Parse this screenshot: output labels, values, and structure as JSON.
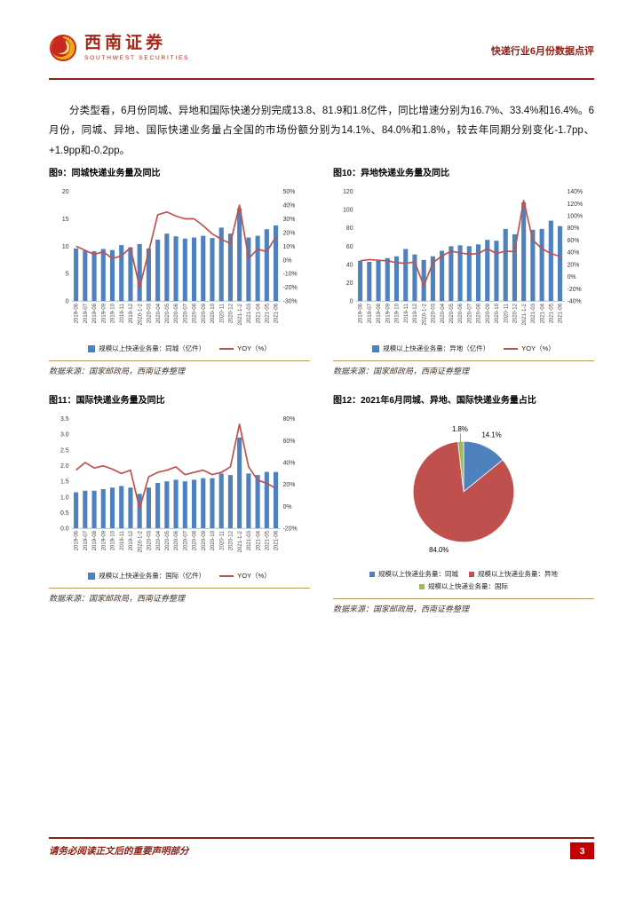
{
  "header": {
    "logo_cn": "西南证券",
    "logo_en": "SOUTHWEST SECURITIES",
    "report_title": "快递行业6月份数据点评"
  },
  "paragraph": "分类型看，6月份同城、异地和国际快递分别完成13.8、81.9和1.8亿件，同比增速分别为16.7%、33.4%和16.4%。6月份，同城、异地、国际快递业务量占全国的市场份额分别为14.1%、84.0%和1.8%，较去年同期分别变化-1.7pp、+1.9pp和-0.2pp。",
  "source_note": "数据来源：国家邮政局，西南证券整理",
  "footer": {
    "disclaimer": "请务必阅读正文后的重要声明部分",
    "page_number": "3"
  },
  "chart_data": [
    {
      "type": "bar",
      "title": "图9：同城快递业务量及同比",
      "categories": [
        "2019-06",
        "2019-07",
        "2019-08",
        "2019-09",
        "2019-10",
        "2019-11",
        "2019-12",
        "2020-1-2",
        "2020-03",
        "2020-04",
        "2020-05",
        "2020-06",
        "2020-07",
        "2020-08",
        "2020-09",
        "2020-10",
        "2020-11",
        "2020-12",
        "2021-1-2",
        "2021-03",
        "2021-04",
        "2021-05",
        "2021-06"
      ],
      "series": [
        {
          "name": "规模以上快递业务量：同城（亿件）",
          "type": "bar",
          "axis": "left",
          "values": [
            9.6,
            9.2,
            9.1,
            9.5,
            9.3,
            10.2,
            9.8,
            10.4,
            9.6,
            11.2,
            12.3,
            11.8,
            11.4,
            11.6,
            11.9,
            11.5,
            13.4,
            12.3,
            16.9,
            11.6,
            11.9,
            13.1,
            13.8
          ]
        },
        {
          "name": "YOY（%）",
          "type": "line",
          "axis": "right",
          "values": [
            10,
            7,
            4,
            6,
            1,
            3,
            9,
            -20,
            6,
            33,
            35,
            32,
            30,
            30,
            25,
            19,
            15,
            12,
            40,
            1,
            8,
            6,
            16.7
          ]
        }
      ],
      "axes": {
        "left": {
          "min": 0,
          "max": 20,
          "step": 5,
          "decimals": 0
        },
        "right": {
          "min": -30,
          "max": 50,
          "step": 10,
          "suffix": "%"
        }
      },
      "colors": {
        "bar": "#4F81BD",
        "line": "#C0504D"
      },
      "legend_position": "bottom",
      "grid": false
    },
    {
      "type": "bar",
      "title": "图10：异地快递业务量及同比",
      "categories": [
        "2019-06",
        "2019-07",
        "2019-08",
        "2019-09",
        "2019-10",
        "2019-11",
        "2019-12",
        "2020-1-2",
        "2020-03",
        "2020-04",
        "2020-05",
        "2020-06",
        "2020-07",
        "2020-08",
        "2020-09",
        "2020-10",
        "2020-11",
        "2020-12",
        "2021-1-2",
        "2021-03",
        "2021-04",
        "2021-05",
        "2021-06"
      ],
      "series": [
        {
          "name": "规模以上快递业务量：异地（亿件）",
          "type": "bar",
          "axis": "left",
          "values": [
            44,
            43,
            44,
            47,
            49,
            57,
            51,
            45,
            49,
            55,
            60,
            61,
            60,
            62,
            67,
            66,
            79,
            73,
            108,
            78,
            79,
            88,
            82
          ]
        },
        {
          "name": "YOY（%）",
          "type": "line",
          "axis": "right",
          "values": [
            26,
            28,
            27,
            26,
            23,
            22,
            24,
            -15,
            23,
            34,
            42,
            39,
            37,
            38,
            46,
            38,
            42,
            41,
            125,
            60,
            46,
            38,
            33.4
          ]
        }
      ],
      "axes": {
        "left": {
          "min": 0,
          "max": 120,
          "step": 20,
          "decimals": 0
        },
        "right": {
          "min": -40,
          "max": 140,
          "step": 20,
          "suffix": "%"
        }
      },
      "colors": {
        "bar": "#4F81BD",
        "line": "#C0504D"
      },
      "legend_position": "bottom",
      "grid": false
    },
    {
      "type": "bar",
      "title": "图11：国际快递业务量及同比",
      "categories": [
        "2019-06",
        "2019-07",
        "2019-08",
        "2019-09",
        "2019-10",
        "2019-11",
        "2019-12",
        "2020-1-2",
        "2020-03",
        "2020-04",
        "2020-05",
        "2020-06",
        "2020-07",
        "2020-08",
        "2020-09",
        "2020-10",
        "2020-11",
        "2020-12",
        "2021-1-2",
        "2021-03",
        "2021-04",
        "2021-05",
        "2021-06"
      ],
      "series": [
        {
          "name": "规模以上快递业务量：国际（亿件）",
          "type": "bar",
          "axis": "left",
          "values": [
            1.15,
            1.2,
            1.2,
            1.25,
            1.3,
            1.35,
            1.3,
            1.1,
            1.3,
            1.45,
            1.5,
            1.55,
            1.5,
            1.55,
            1.6,
            1.6,
            1.75,
            1.7,
            2.9,
            1.75,
            1.7,
            1.8,
            1.8
          ]
        },
        {
          "name": "YOY（%）",
          "type": "line",
          "axis": "right",
          "values": [
            33,
            40,
            35,
            37,
            34,
            30,
            33,
            -2,
            27,
            31,
            33,
            36,
            29,
            31,
            33,
            29,
            31,
            36,
            75,
            36,
            24,
            21,
            16.4
          ]
        }
      ],
      "axes": {
        "left": {
          "min": 0,
          "max": 3.5,
          "step": 0.5,
          "decimals": 1
        },
        "right": {
          "min": -20,
          "max": 80,
          "step": 20,
          "suffix": "%"
        }
      },
      "colors": {
        "bar": "#4F81BD",
        "line": "#C0504D"
      },
      "legend_position": "bottom",
      "grid": false
    },
    {
      "type": "pie",
      "title": "图12：2021年6月同城、异地、国际快递业务量占比",
      "labels": [
        "规模以上快递业务量：同城",
        "规模以上快递业务量：异地",
        "规模以上快递业务量：国际"
      ],
      "values": [
        14.1,
        84.0,
        1.8
      ],
      "display_labels": [
        "14.1%",
        "84.0%",
        "1.8%"
      ],
      "colors": [
        "#4F81BD",
        "#C0504D",
        "#9BBB59"
      ],
      "legend_position": "bottom"
    }
  ]
}
